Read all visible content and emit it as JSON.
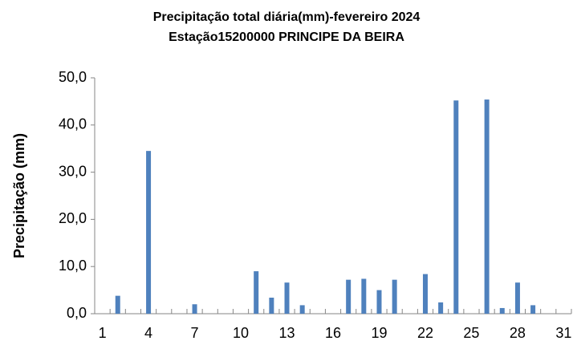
{
  "chart_data": {
    "type": "bar",
    "title": "Precipitação total diária(mm)-fevereiro 2024",
    "subtitle": "Estação15200000 PRINCIPE DA BEIRA",
    "y_label": "Precipitação (mm)",
    "categories": [
      "1",
      null,
      null,
      "4",
      null,
      null,
      "7",
      null,
      null,
      "10",
      null,
      null,
      "13",
      null,
      null,
      "16",
      null,
      null,
      "19",
      null,
      null,
      "22",
      null,
      null,
      "25",
      null,
      null,
      "28",
      null,
      null,
      "31"
    ],
    "values": [
      0,
      3.8,
      0,
      34.5,
      0,
      0,
      2.0,
      0,
      0,
      0,
      9.0,
      3.4,
      6.6,
      1.8,
      0,
      0,
      7.2,
      7.4,
      5.0,
      7.2,
      0,
      8.4,
      2.4,
      45.2,
      0,
      45.4,
      1.2,
      6.6,
      1.8,
      0,
      0
    ],
    "color": "#4f81bd",
    "ylim": [
      0,
      50
    ],
    "yticks": [
      {
        "value": 0,
        "label": "0,0"
      },
      {
        "value": 10,
        "label": "10,0"
      },
      {
        "value": 20,
        "label": "20,0"
      },
      {
        "value": 30,
        "label": "30,0"
      },
      {
        "value": 40,
        "label": "40,0"
      },
      {
        "value": 50,
        "label": "50,0"
      }
    ],
    "grid": false
  }
}
